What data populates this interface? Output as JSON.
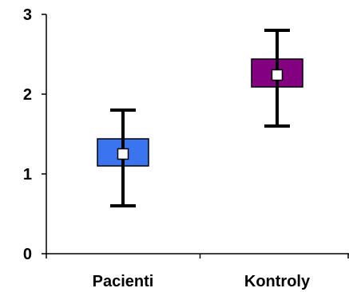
{
  "chart_data": {
    "type": "box",
    "categories": [
      "Pacienti",
      "Kontroly"
    ],
    "y_ticks": [
      "0",
      "1",
      "2",
      "3"
    ],
    "ylim": [
      0,
      3
    ],
    "grid": false,
    "legend": "none",
    "series": [
      {
        "values": [
          {
            "category": "Pacienti",
            "min": 0.6,
            "q1": 1.1,
            "mean": 1.25,
            "q3": 1.44,
            "max": 1.8
          },
          {
            "category": "Kontroly",
            "min": 1.6,
            "q1": 2.09,
            "mean": 2.24,
            "q3": 2.44,
            "max": 2.8
          }
        ]
      }
    ],
    "colors": {
      "Pacienti": "#3a75ef",
      "Kontroly": "#830081",
      "axis": "#000000",
      "mean_marker": "#ffffff"
    }
  }
}
